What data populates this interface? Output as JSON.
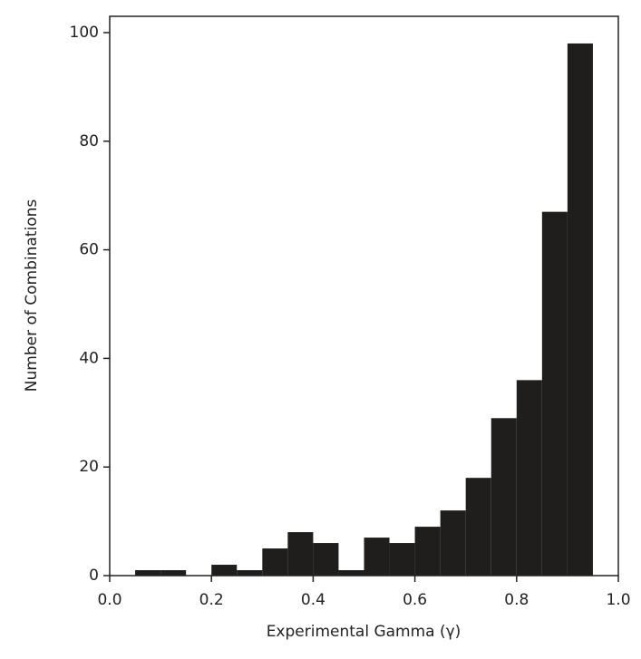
{
  "chart_data": {
    "type": "histogram",
    "xlabel": "Experimental Gamma (γ)",
    "ylabel": "Number of Combinations",
    "bins": [
      0.05,
      0.1,
      0.15,
      0.2,
      0.25,
      0.3,
      0.35,
      0.4,
      0.45,
      0.5,
      0.55,
      0.6,
      0.65,
      0.7,
      0.75,
      0.8,
      0.85,
      0.9,
      0.95
    ],
    "values": [
      1,
      1,
      0,
      2,
      1,
      5,
      8,
      6,
      1,
      7,
      6,
      9,
      12,
      18,
      29,
      36,
      67,
      98
    ],
    "color": "#1f1e1c",
    "xlim": [
      0,
      1
    ],
    "xticks": [
      {
        "value": 0,
        "label": "0.0"
      },
      0.2,
      0.4,
      0.6,
      0.8,
      {
        "value": 1,
        "label": "1.0"
      }
    ],
    "ylim": [
      0,
      103
    ],
    "yticks": [
      0,
      20,
      40,
      60,
      80,
      100
    ]
  }
}
